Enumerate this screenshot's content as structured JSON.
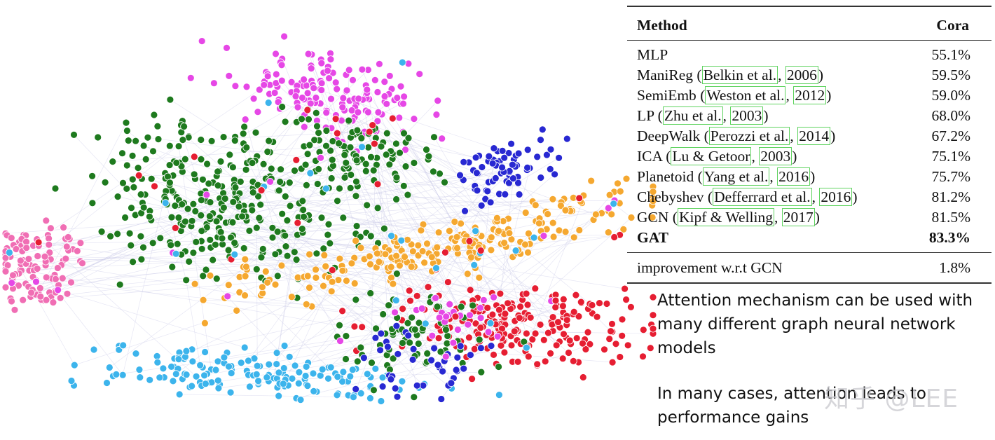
{
  "table": {
    "headers": {
      "method": "Method",
      "dataset": "Cora"
    },
    "rows": [
      {
        "name": "MLP",
        "cite": [],
        "value": "55.1%"
      },
      {
        "name": "ManiReg",
        "cite": [
          "Belkin et al.",
          "2006"
        ],
        "value": "59.5%"
      },
      {
        "name": "SemiEmb",
        "cite": [
          "Weston et al.",
          "2012"
        ],
        "value": "59.0%"
      },
      {
        "name": "LP",
        "cite": [
          "Zhu et al.",
          "2003"
        ],
        "value": "68.0%"
      },
      {
        "name": "DeepWalk",
        "cite": [
          "Perozzi et al.",
          "2014"
        ],
        "value": "67.2%"
      },
      {
        "name": "ICA",
        "cite": [
          "Lu & Getoor",
          "2003"
        ],
        "value": "75.1%"
      },
      {
        "name": "Planetoid",
        "cite": [
          "Yang et al.",
          "2016"
        ],
        "value": "75.7%"
      },
      {
        "name": "Chebyshev",
        "cite": [
          "Defferrard et al.",
          "2016"
        ],
        "value": "81.2%"
      },
      {
        "name": "GCN",
        "cite": [
          "Kipf & Welling",
          "2017"
        ],
        "value": "81.5%"
      }
    ],
    "best": {
      "name": "GAT",
      "value": "83.3%"
    },
    "footer": {
      "label": "improvement w.r.t GCN",
      "value": "1.8%"
    }
  },
  "captions": {
    "first": "Attention mechanism can be used with many different graph neural network models",
    "second": "In many cases, attention leads to performance gains"
  },
  "watermark": "知乎 @LEE",
  "colors": {
    "magenta": "#e647e6",
    "green": "#1e7a1e",
    "blue": "#2828d2",
    "orange": "#f5a830",
    "pink": "#f06eb4",
    "lightblue": "#3cb4ec",
    "red": "#e61e32",
    "edge": "#c8c8e6",
    "cite_box": "#5fd35f"
  }
}
